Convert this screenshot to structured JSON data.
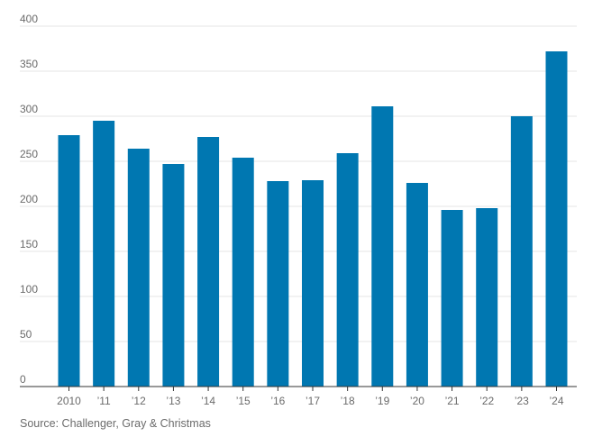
{
  "chart_data": {
    "type": "bar",
    "categories": [
      "2010",
      "’11",
      "’12",
      "’13",
      "’14",
      "’15",
      "’16",
      "’17",
      "’18",
      "’19",
      "’20",
      "’21",
      "’22",
      "’23",
      "’24"
    ],
    "values": [
      279,
      295,
      264,
      247,
      277,
      254,
      228,
      229,
      259,
      311,
      226,
      196,
      198,
      300,
      372
    ],
    "y_ticks": [
      0,
      50,
      100,
      150,
      200,
      250,
      300,
      350,
      400
    ],
    "ylim": [
      0,
      400
    ],
    "title": "",
    "xlabel": "",
    "ylabel": "",
    "grid": true,
    "bar_color": "#0077b1"
  },
  "source": "Source: Challenger, Gray & Christmas"
}
